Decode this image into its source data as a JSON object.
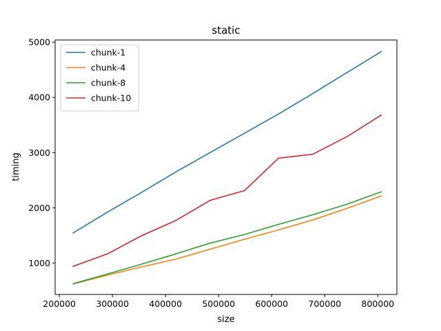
{
  "chart_data": {
    "type": "line",
    "title": "static",
    "xlabel": "size",
    "ylabel": "timing",
    "xlim": [
      192000,
      836000
    ],
    "ylim": [
      430,
      5040
    ],
    "xticks": [
      200000,
      300000,
      400000,
      500000,
      600000,
      700000,
      800000
    ],
    "yticks": [
      1000,
      2000,
      3000,
      4000,
      5000
    ],
    "grid": false,
    "legend_position": "top-left",
    "x": [
      226000,
      290500,
      355000,
      419500,
      484000,
      548500,
      613000,
      677500,
      742000,
      806500
    ],
    "series": [
      {
        "name": "chunk-1",
        "color": "#1f77b4",
        "values": [
          1545,
          1920,
          2280,
          2650,
          3000,
          3350,
          3700,
          4070,
          4450,
          4830
        ]
      },
      {
        "name": "chunk-4",
        "color": "#ff7f0e",
        "values": [
          620,
          780,
          930,
          1070,
          1250,
          1430,
          1600,
          1780,
          1990,
          2215
        ]
      },
      {
        "name": "chunk-8",
        "color": "#2ca02c",
        "values": [
          625,
          800,
          980,
          1165,
          1360,
          1515,
          1700,
          1875,
          2065,
          2290
        ]
      },
      {
        "name": "chunk-10",
        "color": "#d62728",
        "values": [
          940,
          1165,
          1495,
          1770,
          2135,
          2310,
          2900,
          2970,
          3290,
          3680
        ]
      }
    ]
  }
}
